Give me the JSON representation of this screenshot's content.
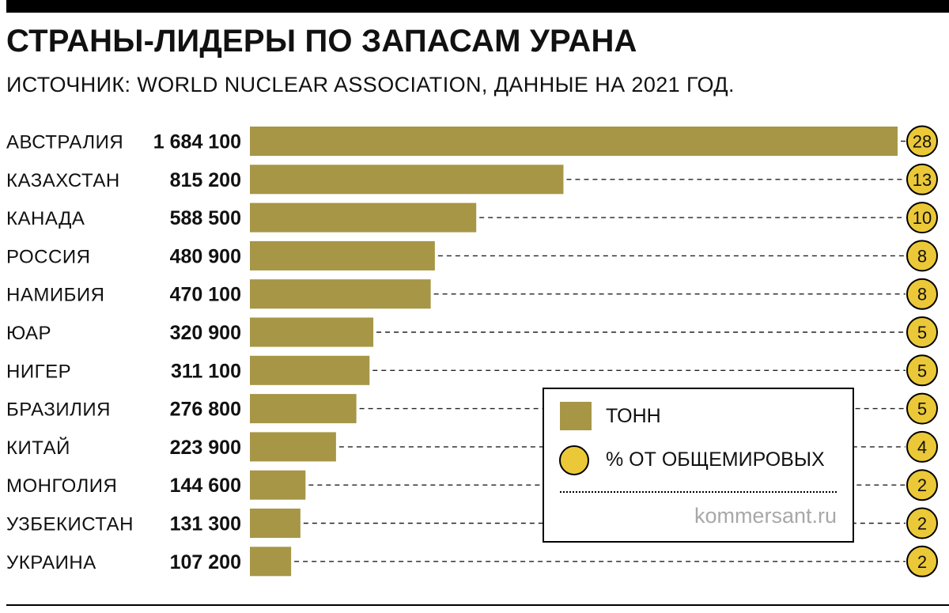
{
  "header": {
    "title": "СТРАНЫ-ЛИДЕРЫ ПО ЗАПАСАМ УРАНА",
    "subtitle": "ИСТОЧНИК: WORLD NUCLEAR ASSOCIATION, ДАННЫЕ НА 2021 ГОД."
  },
  "legend": {
    "bar_label": "ТОНН",
    "circle_label": "% ОТ ОБЩЕМИРОВЫХ",
    "site": "kommersant.ru"
  },
  "colors": {
    "bar": "#A69646",
    "circle": "#EBC837",
    "text": "#111111"
  },
  "chart_data": {
    "type": "bar",
    "orientation": "horizontal",
    "title": "СТРАНЫ-ЛИДЕРЫ ПО ЗАПАСАМ УРАНА",
    "xlim": [
      0,
      1684100
    ],
    "categories": [
      "АВСТРАЛИЯ",
      "КАЗАХСТАН",
      "КАНАДА",
      "РОССИЯ",
      "НАМИБИЯ",
      "ЮАР",
      "НИГЕР",
      "БРАЗИЛИЯ",
      "КИТАЙ",
      "МОНГОЛИЯ",
      "УЗБЕКИСТАН",
      "УКРАИНА"
    ],
    "series": [
      {
        "name": "ТОНН",
        "values": [
          1684100,
          815200,
          588500,
          480900,
          470100,
          320900,
          311100,
          276800,
          223900,
          144600,
          131300,
          107200
        ],
        "labels": [
          "1 684 100",
          "815 200",
          "588 500",
          "480 900",
          "470 100",
          "320 900",
          "311 100",
          "276 800",
          "223 900",
          "144 600",
          "131 300",
          "107 200"
        ]
      },
      {
        "name": "% ОТ ОБЩЕМИРОВЫХ",
        "values": [
          28,
          13,
          10,
          8,
          8,
          5,
          5,
          5,
          4,
          2,
          2,
          2
        ]
      }
    ]
  }
}
